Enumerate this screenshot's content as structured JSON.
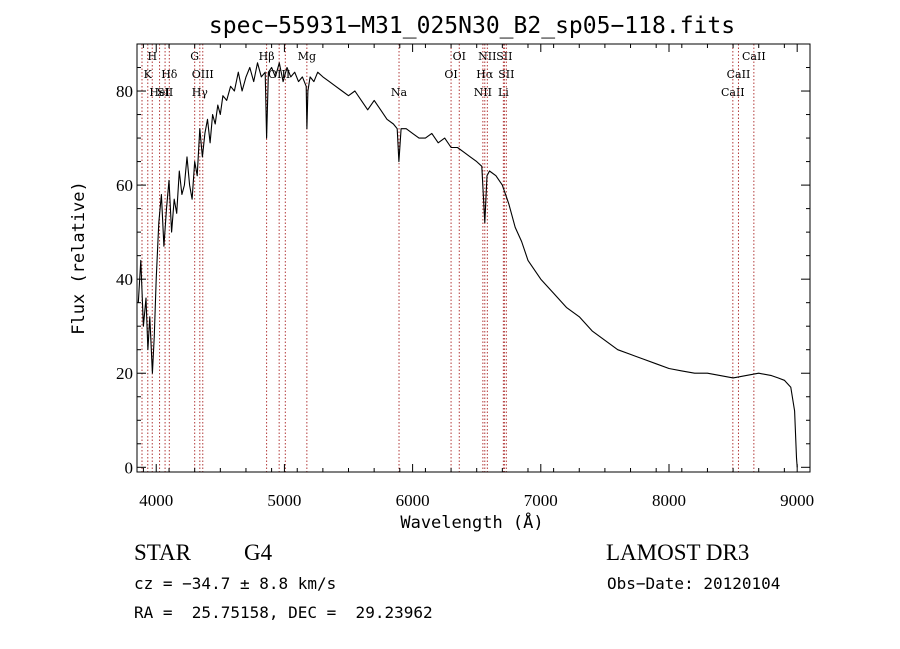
{
  "chart_data": {
    "type": "line",
    "title": "spec−55931−M31_025N30_B2_sp05−118.fits",
    "xlabel": "Wavelength (Å)",
    "ylabel": "Flux (relative)",
    "xlim": [
      3850,
      9100
    ],
    "ylim": [
      -1,
      90
    ],
    "x_ticks": [
      4000,
      5000,
      6000,
      7000,
      8000,
      9000
    ],
    "x_tick_labels": [
      "4000",
      "5000",
      "6000",
      "7000",
      "8000",
      "9000"
    ],
    "y_ticks": [
      0,
      20,
      40,
      60,
      80
    ],
    "y_tick_labels": [
      "0",
      "20",
      "40",
      "60",
      "80"
    ],
    "series": [
      {
        "name": "flux",
        "x": [
          3860,
          3880,
          3900,
          3920,
          3935,
          3950,
          3970,
          3985,
          4000,
          4020,
          4040,
          4060,
          4080,
          4100,
          4120,
          4140,
          4160,
          4180,
          4200,
          4220,
          4240,
          4260,
          4280,
          4300,
          4320,
          4340,
          4360,
          4380,
          4400,
          4420,
          4440,
          4460,
          4480,
          4500,
          4520,
          4550,
          4580,
          4610,
          4640,
          4670,
          4700,
          4730,
          4760,
          4790,
          4820,
          4850,
          4861,
          4875,
          4900,
          4930,
          4960,
          4990,
          5020,
          5050,
          5080,
          5110,
          5140,
          5170,
          5175,
          5183,
          5200,
          5230,
          5260,
          5300,
          5350,
          5400,
          5450,
          5500,
          5550,
          5600,
          5650,
          5700,
          5750,
          5800,
          5850,
          5880,
          5893,
          5910,
          5950,
          6000,
          6050,
          6100,
          6150,
          6200,
          6250,
          6300,
          6350,
          6400,
          6450,
          6500,
          6540,
          6563,
          6580,
          6600,
          6650,
          6700,
          6750,
          6800,
          6850,
          6900,
          6950,
          7000,
          7100,
          7200,
          7300,
          7400,
          7500,
          7600,
          7700,
          7800,
          7900,
          8000,
          8100,
          8200,
          8300,
          8400,
          8500,
          8600,
          8700,
          8800,
          8850,
          8900,
          8950,
          8980,
          8995,
          9000
        ],
        "y": [
          35,
          44,
          30,
          36,
          25,
          32,
          20,
          28,
          40,
          52,
          58,
          47,
          55,
          61,
          50,
          57,
          54,
          63,
          58,
          60,
          66,
          60,
          57,
          65,
          62,
          72,
          66,
          71,
          74,
          69,
          75,
          73,
          77,
          75,
          79,
          78,
          81,
          80,
          84,
          80,
          83,
          85,
          82,
          86,
          83,
          84,
          70,
          84,
          85,
          83,
          86,
          82,
          85,
          83,
          84,
          82,
          83,
          81,
          72,
          80,
          83,
          82,
          84,
          83,
          82,
          81,
          80,
          79,
          80,
          78,
          76,
          78,
          76,
          74,
          73,
          72,
          65,
          72,
          72,
          71,
          70,
          70,
          71,
          69,
          70,
          68,
          68,
          67,
          66,
          65,
          64,
          52,
          62,
          63,
          62,
          60,
          56,
          51,
          48,
          44,
          42,
          40,
          37,
          34,
          32,
          29,
          27,
          25,
          24,
          23,
          22,
          21,
          20.5,
          20,
          20,
          19.5,
          19,
          19.5,
          20,
          19.5,
          19,
          18.5,
          17,
          12,
          2,
          0
        ]
      }
    ],
    "line_markers": [
      {
        "x": 3889,
        "label": "",
        "row": 0
      },
      {
        "x": 3934,
        "label": "K",
        "row": 1
      },
      {
        "x": 3969,
        "label": "H",
        "row": 0
      },
      {
        "x": 4026,
        "label": "HeI",
        "row": 2
      },
      {
        "x": 4069,
        "label": "SII",
        "row": 2
      },
      {
        "x": 4102,
        "label": "Hδ",
        "row": 1
      },
      {
        "x": 4300,
        "label": "G",
        "row": 0
      },
      {
        "x": 4340,
        "label": "Hγ",
        "row": 2
      },
      {
        "x": 4363,
        "label": "OIII",
        "row": 1
      },
      {
        "x": 4861,
        "label": "Hβ",
        "row": 0
      },
      {
        "x": 4959,
        "label": "OIII",
        "row": 1
      },
      {
        "x": 5007,
        "label": "",
        "row": 0
      },
      {
        "x": 5175,
        "label": "Mg",
        "row": 0
      },
      {
        "x": 5894,
        "label": "Na",
        "row": 2
      },
      {
        "x": 6300,
        "label": "OI",
        "row": 1
      },
      {
        "x": 6364,
        "label": "OI",
        "row": 0
      },
      {
        "x": 6548,
        "label": "NII",
        "row": 2
      },
      {
        "x": 6563,
        "label": "Hα",
        "row": 1
      },
      {
        "x": 6583,
        "label": "NII",
        "row": 0
      },
      {
        "x": 6708,
        "label": "Li",
        "row": 2
      },
      {
        "x": 6716,
        "label": "SII",
        "row": 0
      },
      {
        "x": 6731,
        "label": "SII",
        "row": 1
      },
      {
        "x": 8498,
        "label": "CaII",
        "row": 2
      },
      {
        "x": 8542,
        "label": "CaII",
        "row": 1
      },
      {
        "x": 8662,
        "label": "CaII",
        "row": 0
      }
    ]
  },
  "info": {
    "class_label": "STAR",
    "subclass": "G4",
    "survey": "LAMOST DR3",
    "redshift": "cz = −34.7 ± 8.8 km/s",
    "obs_date": "Obs−Date: 20120104",
    "coords": "RA =  25.75158, DEC =  29.23962"
  }
}
